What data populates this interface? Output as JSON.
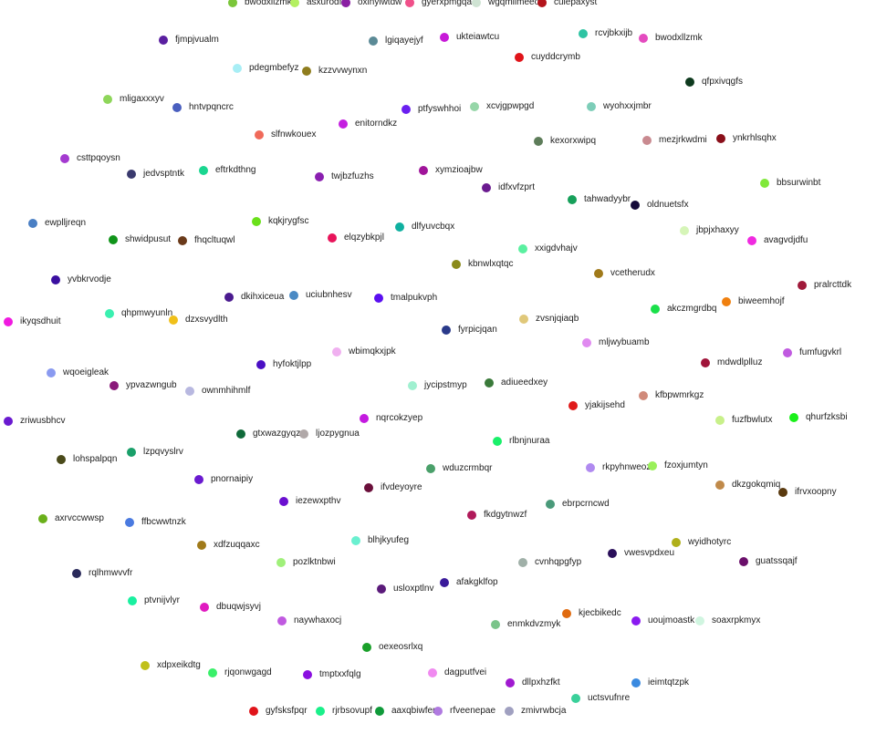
{
  "nodes": [
    {
      "label": "bwodxllzmk",
      "color": "#7bc63a"
    },
    {
      "label": "asxurodfm",
      "color": "#b4f060"
    },
    {
      "label": "oxinyiwtdw",
      "color": "#8a1fa3"
    },
    {
      "label": "gyerxpmgqa",
      "color": "#f0508a"
    },
    {
      "label": "wgqmilmeeo",
      "color": "#cfe3d3"
    },
    {
      "label": "culepaxyst",
      "color": "#b3141c"
    },
    {
      "label": "fjmpjvualm",
      "color": "#5a1fa0"
    },
    {
      "label": "lgiqayejyf",
      "color": "#5b8a96"
    },
    {
      "label": "ukteiawtcu",
      "color": "#c71ad8"
    },
    {
      "label": "rcvjbkxijb",
      "color": "#2ec4a3"
    },
    {
      "label": "bwodxllzmk",
      "color": "#e44bbf"
    },
    {
      "label": "cuyddcrymb",
      "color": "#e0141a"
    },
    {
      "label": "pdegmbefyz",
      "color": "#a8eef5"
    },
    {
      "label": "kzzvvwynxn",
      "color": "#8f7d1e"
    },
    {
      "label": "qfpxivqgfs",
      "color": "#0e3a1e"
    },
    {
      "label": "mligaxxxyv",
      "color": "#8ed65a"
    },
    {
      "label": "hntvpqncrc",
      "color": "#4a5fbf"
    },
    {
      "label": "ptfyswhhoi",
      "color": "#6a1ff0"
    },
    {
      "label": "xcvjgpwpgd",
      "color": "#96d6a8"
    },
    {
      "label": "wyohxxjmbr",
      "color": "#7dcdb8"
    },
    {
      "label": "enitorndkz",
      "color": "#c41fe0"
    },
    {
      "label": "slfnwkouex",
      "color": "#f06a5a"
    },
    {
      "label": "kexorxwipq",
      "color": "#5e7d5a"
    },
    {
      "label": "mezjrkwdmi",
      "color": "#c98a90"
    },
    {
      "label": "ynkrhlsqhx",
      "color": "#8a0f1a"
    },
    {
      "label": "csttpqoysn",
      "color": "#a43ad0"
    },
    {
      "label": "jedvsptntk",
      "color": "#3a3a6e"
    },
    {
      "label": "eftrkdthng",
      "color": "#1ad690"
    },
    {
      "label": "twjbzfuzhs",
      "color": "#8a1fb0"
    },
    {
      "label": "xymzioajbw",
      "color": "#a0149a"
    },
    {
      "label": "bbsurwinbt",
      "color": "#80e83a"
    },
    {
      "label": "idfxvfzprt",
      "color": "#6a1a8f"
    },
    {
      "label": "tahwadyybr",
      "color": "#16a05a"
    },
    {
      "label": "oldnuetsfx",
      "color": "#14093a"
    },
    {
      "label": "ewplljreqn",
      "color": "#4a7fc4"
    },
    {
      "label": "kqkjrygfsc",
      "color": "#6ae01a"
    },
    {
      "label": "dlfyuvcbqx",
      "color": "#0fb0a0"
    },
    {
      "label": "jbpjxhaxyy",
      "color": "#d6f5b8"
    },
    {
      "label": "shwidpusut",
      "color": "#10941a"
    },
    {
      "label": "fhqcltuqwl",
      "color": "#6a3a1a"
    },
    {
      "label": "elqzybkpjl",
      "color": "#e8145a"
    },
    {
      "label": "avagvdjdfu",
      "color": "#f02ae0"
    },
    {
      "label": "xxigdvhajv",
      "color": "#5af0a0"
    },
    {
      "label": "kbnwlxqtqc",
      "color": "#8a8a1a"
    },
    {
      "label": "vcetherudx",
      "color": "#a07a1a"
    },
    {
      "label": "yvbkrvodje",
      "color": "#3a0fa0"
    },
    {
      "label": "pralrcttdk",
      "color": "#a01a3a"
    },
    {
      "label": "dkihxiceua",
      "color": "#4a1a8f"
    },
    {
      "label": "uciubnhesv",
      "color": "#4a8ac4"
    },
    {
      "label": "tmalpukvph",
      "color": "#5a0ff0"
    },
    {
      "label": "biweemhojf",
      "color": "#f0800f"
    },
    {
      "label": "akczmgrdbq",
      "color": "#1ae04a"
    },
    {
      "label": "qhpmwyunln",
      "color": "#3af0b0"
    },
    {
      "label": "ikyqsdhuit",
      "color": "#f01ae0"
    },
    {
      "label": "dzxsvydlth",
      "color": "#f0c01a"
    },
    {
      "label": "zvsnjqiaqb",
      "color": "#e0c87a"
    },
    {
      "label": "fyrpicjqan",
      "color": "#2a3a8a"
    },
    {
      "label": "mljwybuamb",
      "color": "#e08af0"
    },
    {
      "label": "wbimqkxjpk",
      "color": "#f0b0f0"
    },
    {
      "label": "fumfugvkrl",
      "color": "#c05ae0"
    },
    {
      "label": "hyfoktjlpp",
      "color": "#4a0fc4"
    },
    {
      "label": "mdwdlplluz",
      "color": "#a0143a"
    },
    {
      "label": "wqoeigleak",
      "color": "#8a9af0"
    },
    {
      "label": "adiueedxey",
      "color": "#3a7a3a"
    },
    {
      "label": "ypvazwngub",
      "color": "#8a1a7a"
    },
    {
      "label": "jycipstmyp",
      "color": "#a0f0d0"
    },
    {
      "label": "ownmhihmlf",
      "color": "#b8b8e0"
    },
    {
      "label": "kfbpwmrkgz",
      "color": "#d08a7a"
    },
    {
      "label": "yjakijsehd",
      "color": "#e01a1a"
    },
    {
      "label": "qhurfzksbi",
      "color": "#1af01a"
    },
    {
      "label": "fuzfbwlutx",
      "color": "#c8f08a"
    },
    {
      "label": "zriwusbhcv",
      "color": "#6a1ad0"
    },
    {
      "label": "nqrcokzyep",
      "color": "#c41ae0"
    },
    {
      "label": "gtxwazgyqz",
      "color": "#0f6a3a"
    },
    {
      "label": "ljozpygnua",
      "color": "#b0a8a8"
    },
    {
      "label": "rlbnjnuraa",
      "color": "#1af06a"
    },
    {
      "label": "lohspalpqn",
      "color": "#4a4a1a"
    },
    {
      "label": "lzpqvyslrv",
      "color": "#1aa06a"
    },
    {
      "label": "wduzcrmbqr",
      "color": "#4aa06a"
    },
    {
      "label": "rkpyhnweoz",
      "color": "#b08af0"
    },
    {
      "label": "fzoxjumtyn",
      "color": "#9af05a"
    },
    {
      "label": "pnornaipiy",
      "color": "#6a1ad0"
    },
    {
      "label": "dkzgokqmiq",
      "color": "#c08a4a"
    },
    {
      "label": "ifvdeyoyre",
      "color": "#6a0f3a"
    },
    {
      "label": "ifrvxoopny",
      "color": "#5a3a0f"
    },
    {
      "label": "iezewxpthv",
      "color": "#6a0fd0"
    },
    {
      "label": "ebrpcrncwd",
      "color": "#4a9a7a"
    },
    {
      "label": "fkdgytnwzf",
      "color": "#b01a5a"
    },
    {
      "label": "axrvccwwsp",
      "color": "#6ab01a"
    },
    {
      "label": "ffbcwwtnzk",
      "color": "#4a7ae0"
    },
    {
      "label": "blhjkyufeg",
      "color": "#6af0d0"
    },
    {
      "label": "wyidhotyrc",
      "color": "#b0b01a"
    },
    {
      "label": "xdfzuqqaxc",
      "color": "#a07a1a"
    },
    {
      "label": "vwesvpdxeu",
      "color": "#2a0f5a"
    },
    {
      "label": "guatssqajf",
      "color": "#6a0f6a"
    },
    {
      "label": "pozlktnbwi",
      "color": "#a0f07a"
    },
    {
      "label": "cvnhqpgfyp",
      "color": "#a0b0a8"
    },
    {
      "label": "rqlhmwvvfr",
      "color": "#2a2a5a"
    },
    {
      "label": "afakgklfop",
      "color": "#3a1a9a"
    },
    {
      "label": "usloxptlnv",
      "color": "#5a1a7a"
    },
    {
      "label": "ptvnijvlyr",
      "color": "#1af0a0"
    },
    {
      "label": "dbuqwjsyvj",
      "color": "#e01ac0"
    },
    {
      "label": "kjecbikedc",
      "color": "#e06a0f"
    },
    {
      "label": "naywhaxocj",
      "color": "#c05ae0"
    },
    {
      "label": "uoujmoastk",
      "color": "#8a1af0"
    },
    {
      "label": "soaxrpkmyx",
      "color": "#d0f5e0"
    },
    {
      "label": "enmkdvzmyk",
      "color": "#7ac48a"
    },
    {
      "label": "oexeosrlxq",
      "color": "#1aa02a"
    },
    {
      "label": "xdpxeikdtg",
      "color": "#c0c01a"
    },
    {
      "label": "rjqonwgagd",
      "color": "#3af06a"
    },
    {
      "label": "tmptxxfqlg",
      "color": "#8a0fe0"
    },
    {
      "label": "dagputfvei",
      "color": "#f08af0"
    },
    {
      "label": "dllpxhzfkt",
      "color": "#a01ad0"
    },
    {
      "label": "ieimtqtzpk",
      "color": "#3a8ae0"
    },
    {
      "label": "uctsvufnre",
      "color": "#3ad09a"
    },
    {
      "label": "gyfsksfpqr",
      "color": "#e0141a"
    },
    {
      "label": "rjrbsovupf",
      "color": "#1af08a"
    },
    {
      "label": "aaxqbiwfer",
      "color": "#0f9a3a"
    },
    {
      "label": "rfveenepae",
      "color": "#b07ae0"
    },
    {
      "label": "zmivrwbcja",
      "color": "#a0a0c0"
    }
  ]
}
